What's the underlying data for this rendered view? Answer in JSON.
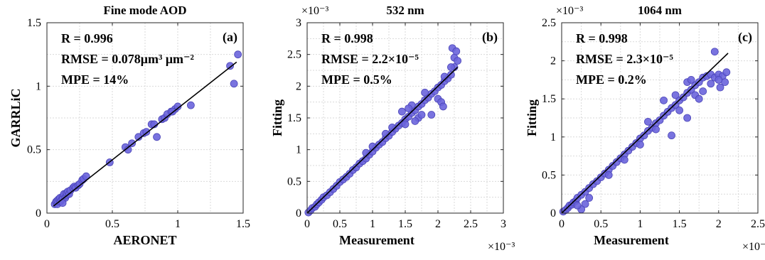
{
  "colors": {
    "marker": "#6a64dc",
    "marker_edge": "#4b45b8",
    "fit_line": "#000000",
    "grid": "#d9d9d9"
  },
  "chart_data": [
    {
      "type": "scatter",
      "title": "Fine mode AOD",
      "panel_label": "(a)",
      "xlabel": "AERONET",
      "ylabel": "GARRLiC",
      "xlim": [
        0,
        1.5
      ],
      "ylim": [
        0,
        1.5
      ],
      "xticks": [
        "0",
        "0.5",
        "1",
        "1.5"
      ],
      "yticks": [
        "0",
        "0.5",
        "1",
        "1.5"
      ],
      "scale_note": "",
      "stats": [
        "R = 0.996",
        "RMSE = 0.078μm³ μm⁻²",
        "MPE = 14%"
      ],
      "grid": true,
      "fit_line": [
        [
          0.05,
          0.055
        ],
        [
          1.45,
          1.19
        ]
      ],
      "points": [
        [
          0.06,
          0.07
        ],
        [
          0.07,
          0.09
        ],
        [
          0.08,
          0.07
        ],
        [
          0.08,
          0.1
        ],
        [
          0.09,
          0.11
        ],
        [
          0.1,
          0.09
        ],
        [
          0.1,
          0.12
        ],
        [
          0.11,
          0.1
        ],
        [
          0.12,
          0.13
        ],
        [
          0.12,
          0.11
        ],
        [
          0.13,
          0.15
        ],
        [
          0.14,
          0.12
        ],
        [
          0.15,
          0.14
        ],
        [
          0.15,
          0.16
        ],
        [
          0.16,
          0.17
        ],
        [
          0.17,
          0.15
        ],
        [
          0.18,
          0.18
        ],
        [
          0.2,
          0.2
        ],
        [
          0.21,
          0.21
        ],
        [
          0.22,
          0.2
        ],
        [
          0.24,
          0.22
        ],
        [
          0.25,
          0.23
        ],
        [
          0.27,
          0.26
        ],
        [
          0.28,
          0.27
        ],
        [
          0.3,
          0.29
        ],
        [
          0.12,
          0.08
        ],
        [
          0.48,
          0.4
        ],
        [
          0.6,
          0.52
        ],
        [
          0.62,
          0.5
        ],
        [
          0.65,
          0.55
        ],
        [
          0.7,
          0.6
        ],
        [
          0.74,
          0.63
        ],
        [
          0.76,
          0.64
        ],
        [
          0.8,
          0.7
        ],
        [
          0.82,
          0.7
        ],
        [
          0.84,
          0.6
        ],
        [
          0.88,
          0.74
        ],
        [
          0.9,
          0.75
        ],
        [
          0.92,
          0.78
        ],
        [
          0.95,
          0.8
        ],
        [
          0.98,
          0.82
        ],
        [
          1.0,
          0.84
        ],
        [
          0.96,
          0.8
        ],
        [
          1.1,
          0.85
        ],
        [
          1.4,
          1.16
        ],
        [
          1.43,
          1.02
        ],
        [
          1.46,
          1.25
        ]
      ]
    },
    {
      "type": "scatter",
      "title": "532 nm",
      "panel_label": "(b)",
      "xlabel": "Measurement",
      "ylabel": "Fitting",
      "xlim": [
        0,
        3
      ],
      "ylim": [
        0,
        3
      ],
      "xticks": [
        "0",
        "0.5",
        "1",
        "1.5",
        "2",
        "2.5",
        "3"
      ],
      "yticks": [
        "0",
        "0.5",
        "1",
        "1.5",
        "2",
        "2.5",
        "3"
      ],
      "scale_note": "×10⁻³",
      "stats": [
        "R = 0.998",
        "RMSE = 2.2×10⁻⁵",
        "MPE = 0.5%"
      ],
      "grid": true,
      "fit_line": [
        [
          0,
          0
        ],
        [
          2.3,
          2.3
        ]
      ],
      "points": [
        [
          0.02,
          0.01
        ],
        [
          0.05,
          0.04
        ],
        [
          0.08,
          0.08
        ],
        [
          0.12,
          0.1
        ],
        [
          0.15,
          0.14
        ],
        [
          0.18,
          0.17
        ],
        [
          0.22,
          0.21
        ],
        [
          0.25,
          0.25
        ],
        [
          0.3,
          0.28
        ],
        [
          0.35,
          0.33
        ],
        [
          0.4,
          0.38
        ],
        [
          0.45,
          0.43
        ],
        [
          0.5,
          0.49
        ],
        [
          0.55,
          0.53
        ],
        [
          0.6,
          0.57
        ],
        [
          0.65,
          0.62
        ],
        [
          0.7,
          0.68
        ],
        [
          0.75,
          0.72
        ],
        [
          0.8,
          0.78
        ],
        [
          0.85,
          0.82
        ],
        [
          0.9,
          0.86
        ],
        [
          0.95,
          0.92
        ],
        [
          1.0,
          0.97
        ],
        [
          1.05,
          1.03
        ],
        [
          1.1,
          1.08
        ],
        [
          1.15,
          1.12
        ],
        [
          1.2,
          1.18
        ],
        [
          1.25,
          1.22
        ],
        [
          1.3,
          1.28
        ],
        [
          1.35,
          1.33
        ],
        [
          1.4,
          1.38
        ],
        [
          1.45,
          1.42
        ],
        [
          1.5,
          1.48
        ],
        [
          1.55,
          1.52
        ],
        [
          1.6,
          1.58
        ],
        [
          1.65,
          1.62
        ],
        [
          1.7,
          1.68
        ],
        [
          1.75,
          1.72
        ],
        [
          1.8,
          1.78
        ],
        [
          1.85,
          1.82
        ],
        [
          1.9,
          1.88
        ],
        [
          1.95,
          1.92
        ],
        [
          2.0,
          1.98
        ],
        [
          2.05,
          2.02
        ],
        [
          2.1,
          2.08
        ],
        [
          2.15,
          2.12
        ],
        [
          2.2,
          2.18
        ],
        [
          2.25,
          2.3
        ],
        [
          2.25,
          2.45
        ],
        [
          2.22,
          2.6
        ],
        [
          2.28,
          2.55
        ],
        [
          2.3,
          2.4
        ],
        [
          1.6,
          1.7
        ],
        [
          1.7,
          1.5
        ],
        [
          1.9,
          1.55
        ],
        [
          2.0,
          1.8
        ],
        [
          2.05,
          1.75
        ],
        [
          2.08,
          1.68
        ],
        [
          1.8,
          1.9
        ],
        [
          1.55,
          1.65
        ],
        [
          1.45,
          1.6
        ],
        [
          1.3,
          1.35
        ],
        [
          1.2,
          1.25
        ],
        [
          1.0,
          1.05
        ],
        [
          0.9,
          0.95
        ],
        [
          1.75,
          1.55
        ],
        [
          1.65,
          1.45
        ],
        [
          1.5,
          1.4
        ],
        [
          2.1,
          2.15
        ],
        [
          2.2,
          2.3
        ]
      ]
    },
    {
      "type": "scatter",
      "title": "1064 nm",
      "panel_label": "(c)",
      "xlabel": "Measurement",
      "ylabel": "Fitting",
      "xlim": [
        0,
        2.5
      ],
      "ylim": [
        0,
        2.5
      ],
      "xticks": [
        "0",
        "0.5",
        "1",
        "1.5",
        "2",
        "2.5"
      ],
      "yticks": [
        "0",
        "0.5",
        "1",
        "1.5",
        "2",
        "2.5"
      ],
      "scale_note": "×10⁻³",
      "stats": [
        "R = 0.998",
        "RMSE = 2.3×10⁻⁵",
        "MPE = 0.2%"
      ],
      "grid": true,
      "fit_line": [
        [
          0,
          0
        ],
        [
          2.12,
          2.1
        ]
      ],
      "points": [
        [
          0.02,
          0.02
        ],
        [
          0.05,
          0.04
        ],
        [
          0.08,
          0.07
        ],
        [
          0.1,
          0.1
        ],
        [
          0.13,
          0.11
        ],
        [
          0.15,
          0.14
        ],
        [
          0.18,
          0.16
        ],
        [
          0.2,
          0.2
        ],
        [
          0.25,
          0.24
        ],
        [
          0.3,
          0.28
        ],
        [
          0.35,
          0.33
        ],
        [
          0.4,
          0.38
        ],
        [
          0.45,
          0.42
        ],
        [
          0.5,
          0.47
        ],
        [
          0.55,
          0.52
        ],
        [
          0.6,
          0.57
        ],
        [
          0.65,
          0.62
        ],
        [
          0.7,
          0.67
        ],
        [
          0.75,
          0.72
        ],
        [
          0.8,
          0.77
        ],
        [
          0.85,
          0.82
        ],
        [
          0.9,
          0.87
        ],
        [
          0.95,
          0.92
        ],
        [
          1.0,
          0.98
        ],
        [
          1.05,
          1.02
        ],
        [
          1.1,
          1.08
        ],
        [
          1.15,
          1.12
        ],
        [
          1.2,
          1.18
        ],
        [
          1.25,
          1.22
        ],
        [
          1.3,
          1.28
        ],
        [
          1.35,
          1.33
        ],
        [
          1.4,
          1.38
        ],
        [
          1.45,
          1.42
        ],
        [
          1.5,
          1.48
        ],
        [
          1.55,
          1.52
        ],
        [
          1.6,
          1.58
        ],
        [
          1.65,
          1.62
        ],
        [
          1.7,
          1.68
        ],
        [
          1.75,
          1.72
        ],
        [
          1.8,
          1.78
        ],
        [
          1.85,
          1.8
        ],
        [
          1.9,
          1.82
        ],
        [
          1.95,
          1.78
        ],
        [
          2.0,
          1.82
        ],
        [
          2.05,
          1.8
        ],
        [
          2.1,
          1.85
        ],
        [
          2.08,
          1.72
        ],
        [
          2.02,
          1.65
        ],
        [
          1.95,
          2.12
        ],
        [
          1.6,
          1.72
        ],
        [
          1.7,
          1.55
        ],
        [
          1.5,
          1.35
        ],
        [
          1.4,
          1.02
        ],
        [
          1.6,
          1.25
        ],
        [
          1.3,
          1.48
        ],
        [
          0.3,
          0.12
        ],
        [
          0.35,
          0.2
        ],
        [
          0.25,
          0.05
        ],
        [
          0.2,
          0.1
        ],
        [
          1.8,
          1.6
        ],
        [
          1.9,
          1.7
        ],
        [
          2.0,
          1.75
        ],
        [
          1.75,
          1.5
        ],
        [
          1.2,
          1.1
        ],
        [
          1.0,
          0.9
        ],
        [
          0.8,
          0.7
        ],
        [
          0.6,
          0.5
        ],
        [
          1.1,
          1.2
        ],
        [
          1.45,
          1.55
        ],
        [
          1.65,
          1.75
        ]
      ]
    }
  ]
}
